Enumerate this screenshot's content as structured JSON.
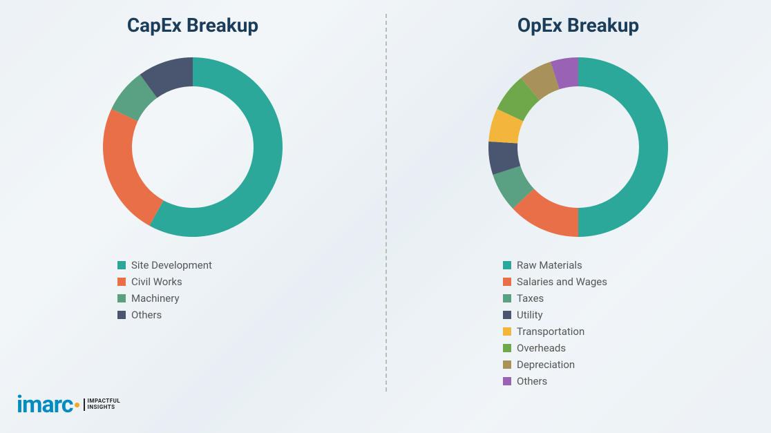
{
  "background_color": "#f2f6f8",
  "divider_color": "#bbbbbb",
  "title_color": "#1c3d5a",
  "title_fontsize": 28,
  "legend_text_color": "#555555",
  "legend_fontsize": 15,
  "donut": {
    "outer_radius": 130,
    "inner_radius": 88,
    "gap_deg": 0,
    "start_angle_deg": -90
  },
  "charts": [
    {
      "key": "capex",
      "title": "CapEx Breakup",
      "type": "donut",
      "segments": [
        {
          "label": "Site Development",
          "value": 58,
          "color": "#2ca89a"
        },
        {
          "label": "Civil Works",
          "value": 24,
          "color": "#e86f47"
        },
        {
          "label": "Machinery",
          "value": 8,
          "color": "#5aa082"
        },
        {
          "label": "Others",
          "value": 10,
          "color": "#4a5670"
        }
      ]
    },
    {
      "key": "opex",
      "title": "OpEx Breakup",
      "type": "donut",
      "segments": [
        {
          "label": "Raw Materials",
          "value": 50,
          "color": "#2ca89a"
        },
        {
          "label": "Salaries and Wages",
          "value": 13,
          "color": "#e86f47"
        },
        {
          "label": "Taxes",
          "value": 7,
          "color": "#5aa082"
        },
        {
          "label": "Utility",
          "value": 6,
          "color": "#4a5670"
        },
        {
          "label": "Transportation",
          "value": 6,
          "color": "#f2b63c"
        },
        {
          "label": "Overheads",
          "value": 7,
          "color": "#6fa84a"
        },
        {
          "label": "Depreciation",
          "value": 6,
          "color": "#a8925a"
        },
        {
          "label": "Others",
          "value": 5,
          "color": "#9a62b5"
        }
      ]
    }
  ],
  "logo": {
    "mark": "imarc",
    "tagline_line1": "IMPACTFUL",
    "tagline_line2": "INSIGHTS",
    "mark_color": "#008cc1",
    "dot_color": "#f5a623",
    "tagline_color": "#222222"
  }
}
